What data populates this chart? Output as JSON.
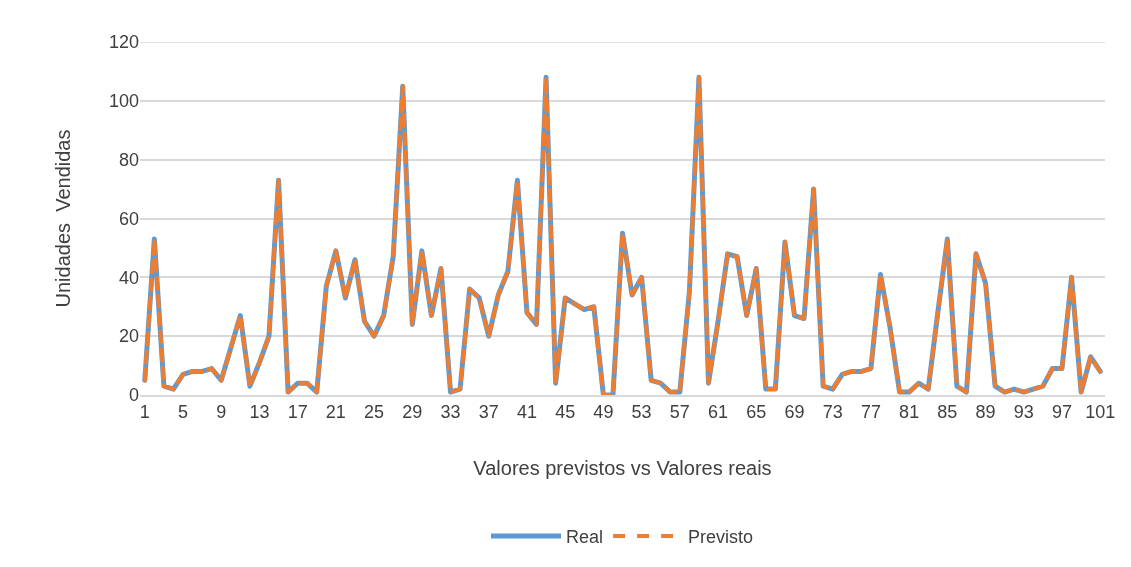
{
  "chart_data": {
    "type": "line",
    "xlabel": "Valores previstos vs Valores reais",
    "ylabel": "Unidades  Vendidas",
    "categories": [
      "1",
      null,
      null,
      null,
      "5",
      null,
      null,
      null,
      "9",
      null,
      null,
      null,
      "13",
      null,
      null,
      null,
      "17",
      null,
      null,
      null,
      "21",
      null,
      null,
      null,
      "25",
      null,
      null,
      null,
      "29",
      null,
      null,
      null,
      "33",
      null,
      null,
      null,
      "37",
      null,
      null,
      null,
      "41",
      null,
      null,
      null,
      "45",
      null,
      null,
      null,
      "49",
      null,
      null,
      null,
      "53",
      null,
      null,
      null,
      "57",
      null,
      null,
      null,
      "61",
      null,
      null,
      null,
      "65",
      null,
      null,
      null,
      "69",
      null,
      null,
      null,
      "73",
      null,
      null,
      null,
      "77",
      null,
      null,
      null,
      "81",
      null,
      null,
      null,
      "85",
      null,
      null,
      null,
      "89",
      null,
      null,
      null,
      "93",
      null,
      null,
      null,
      "97",
      null,
      null,
      null,
      "101"
    ],
    "ylim": [
      0,
      120
    ],
    "yticks": [
      0,
      20,
      40,
      60,
      80,
      100,
      120
    ],
    "grid": "y",
    "legend": "bottom",
    "marker": "none",
    "series": [
      {
        "name": "Real",
        "color": "#5b9bd5",
        "line_style": "solid",
        "values": [
          5,
          53,
          3,
          2,
          7,
          8,
          8,
          9,
          5,
          16,
          27,
          3,
          11,
          20,
          73,
          1,
          4,
          4,
          1,
          37,
          49,
          33,
          46,
          25,
          20,
          27,
          47,
          105,
          24,
          49,
          27,
          43,
          1,
          2,
          36,
          33,
          20,
          34,
          42,
          73,
          28,
          24,
          108,
          4,
          33,
          31,
          29,
          30,
          0,
          0,
          55,
          34,
          40,
          5,
          4,
          1,
          1,
          35,
          108,
          4,
          25,
          48,
          47,
          27,
          43,
          2,
          2,
          52,
          27,
          26,
          70,
          3,
          2,
          7,
          8,
          8,
          9,
          41,
          23,
          1,
          1,
          4,
          2,
          28,
          53,
          3,
          1,
          48,
          38,
          3,
          1,
          2,
          1,
          2,
          3,
          9,
          9,
          40,
          1,
          13,
          8
        ]
      },
      {
        "name": "Previsto",
        "color": "#ed7d31",
        "line_style": "dashed",
        "values": [
          5,
          53,
          3,
          2,
          7,
          8,
          8,
          9,
          5,
          16,
          27,
          3,
          11,
          20,
          73,
          1,
          4,
          4,
          1,
          37,
          49,
          33,
          46,
          25,
          20,
          27,
          47,
          105,
          24,
          49,
          27,
          43,
          1,
          2,
          36,
          33,
          20,
          34,
          42,
          73,
          28,
          24,
          108,
          4,
          33,
          31,
          29,
          30,
          0,
          0,
          55,
          34,
          40,
          5,
          4,
          1,
          1,
          35,
          108,
          4,
          25,
          48,
          47,
          27,
          43,
          2,
          2,
          52,
          27,
          26,
          70,
          3,
          2,
          7,
          8,
          8,
          9,
          41,
          23,
          1,
          1,
          4,
          2,
          28,
          53,
          3,
          1,
          48,
          38,
          3,
          1,
          2,
          1,
          2,
          3,
          9,
          9,
          40,
          1,
          13,
          8
        ]
      }
    ]
  }
}
